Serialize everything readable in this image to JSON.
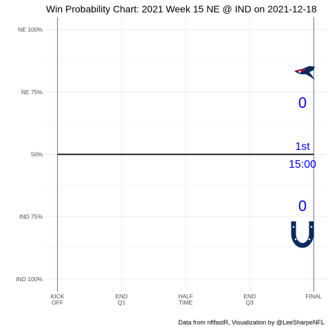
{
  "chart_data": {
    "type": "line",
    "title": "Win Probability Chart: 2021 Week 15 NE @ IND on 2021-12-18",
    "x_ticks": [
      {
        "value": 0,
        "lines": [
          "KICK",
          "OFF"
        ]
      },
      {
        "value": 15,
        "lines": [
          "END",
          "Q1"
        ]
      },
      {
        "value": 30,
        "lines": [
          "HALF",
          "TIME"
        ]
      },
      {
        "value": 45,
        "lines": [
          "END",
          "Q3"
        ]
      },
      {
        "value": 60,
        "lines": [
          "FINAL"
        ]
      }
    ],
    "xlim": [
      -3,
      63
    ],
    "y_ticks": [
      {
        "value": 0,
        "label": "NE 100%"
      },
      {
        "value": 0.25,
        "label": "NE 75%"
      },
      {
        "value": 0.5,
        "label": "50%"
      },
      {
        "value": 0.75,
        "label": "IND 75%"
      },
      {
        "value": 1,
        "label": "IND 100%"
      }
    ],
    "ylim": [
      -0.05,
      1.05
    ],
    "grid": true,
    "series": [
      {
        "x": [
          0,
          60
        ],
        "y": [
          0.5,
          0.5
        ],
        "color": "#000000"
      }
    ],
    "vlines": [
      0,
      60
    ],
    "vline_color": "#4b4b9b"
  },
  "teams": {
    "away": {
      "abbr": "NE",
      "score": "0",
      "logo_icon": "patriots-logo-icon"
    },
    "home": {
      "abbr": "IND",
      "score": "0",
      "logo_icon": "colts-horseshoe-icon"
    }
  },
  "game_state": {
    "quarter": "1st",
    "clock": "15:00"
  },
  "accent_color": "#0000ff",
  "caption": "Data from nflfastR, Visualization by @LeeSharpeNFL"
}
